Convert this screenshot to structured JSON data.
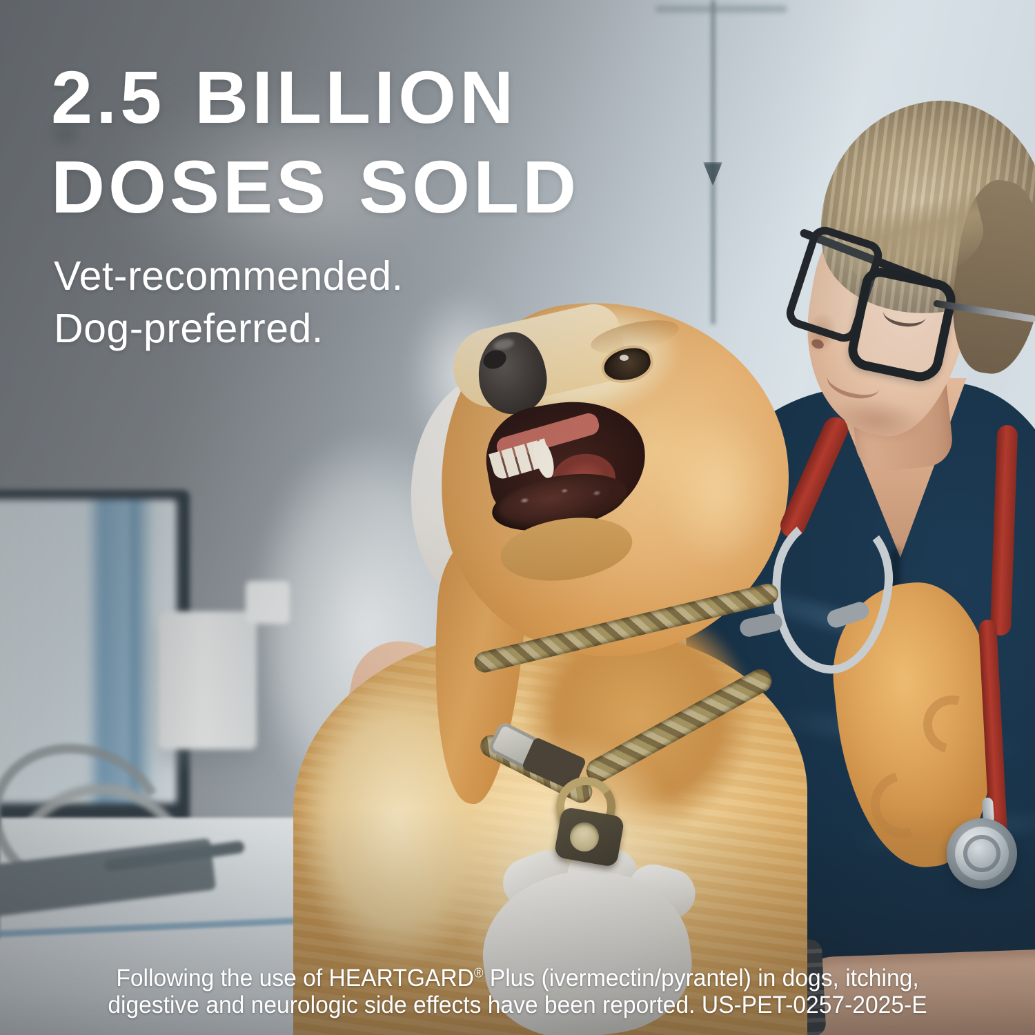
{
  "headline": {
    "line1": "2.5 BILLION",
    "line2": "DOSES SOLD"
  },
  "tagline": {
    "line1": "Vet-recommended.",
    "line2": "Dog-preferred."
  },
  "disclaimer": {
    "line1_pre": "Following the use of HEARTGARD",
    "registered_mark": "®",
    "line1_post": " Plus (ivermectin/pyrantel) in dogs, itching,",
    "line2": "digestive and neurologic side effects have been reported. US-PET-0257-2025-E"
  },
  "photo": {
    "alt": "Veterinarian in navy scrubs with a red stethoscope and glasses smiling at a golden retriever he is holding in a bright clinic exam room with a monitor and IV stand in the background"
  },
  "palette": {
    "text_white": "#ffffff",
    "wall_gray": "#8c9196",
    "wall_light": "#dbe4e9",
    "scrubs_navy": "#16324a",
    "stethoscope_red": "#b23a2e",
    "dog_gold": "#e3b072",
    "dog_cream": "#f4dcab",
    "glove_white": "#eceae4",
    "skin_tone": "#d5ab8d",
    "collar_braid": "#8a7a52"
  }
}
